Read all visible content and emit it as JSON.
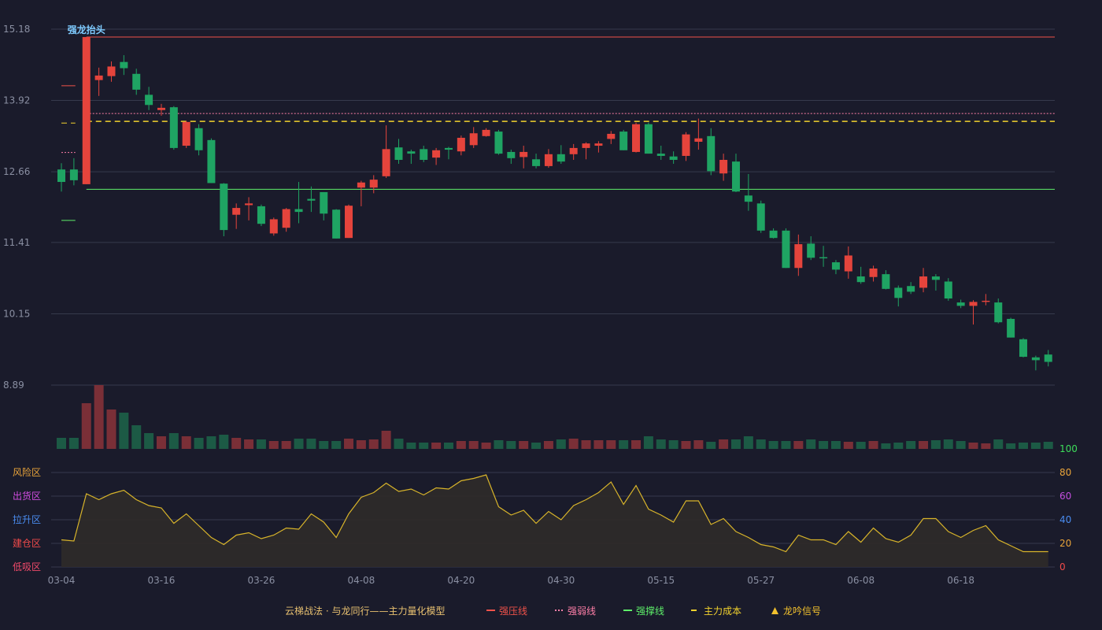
{
  "chart_data": {
    "type": "candlestick",
    "categories": [
      "03-04",
      null,
      null,
      null,
      null,
      null,
      null,
      null,
      "03-16",
      null,
      null,
      null,
      null,
      null,
      null,
      null,
      "03-26",
      null,
      null,
      null,
      null,
      null,
      null,
      null,
      "04-08",
      null,
      null,
      null,
      null,
      null,
      null,
      null,
      "04-20",
      null,
      null,
      null,
      null,
      null,
      null,
      null,
      "04-30",
      null,
      null,
      null,
      null,
      null,
      null,
      null,
      "05-15",
      null,
      null,
      null,
      null,
      null,
      null,
      null,
      "05-27",
      null,
      null,
      null,
      null,
      null,
      null,
      null,
      "06-08",
      null,
      null,
      null,
      null,
      null,
      null,
      null,
      "06-18",
      null,
      null,
      null,
      null,
      null,
      null,
      null
    ],
    "open": [
      12.7,
      12.7,
      12.44,
      14.28,
      14.35,
      14.6,
      14.39,
      14.02,
      13.75,
      13.8,
      13.12,
      13.43,
      13.22,
      12.45,
      11.9,
      12.07,
      12.05,
      11.57,
      11.67,
      12.0,
      12.18,
      12.3,
      11.99,
      11.49,
      12.38,
      12.38,
      12.58,
      13.09,
      13.02,
      13.06,
      12.91,
      13.08,
      13.02,
      13.13,
      13.29,
      13.37,
      13.01,
      12.92,
      12.88,
      12.76,
      12.97,
      12.97,
      13.08,
      13.12,
      13.24,
      13.37,
      13.01,
      13.5,
      12.98,
      12.93,
      12.94,
      13.19,
      13.29,
      12.63,
      12.84,
      12.24,
      12.1,
      11.62,
      11.62,
      10.96,
      11.39,
      11.15,
      11.06,
      10.9,
      10.81,
      10.8,
      10.85,
      10.61,
      10.64,
      10.61,
      10.81,
      10.72,
      10.35,
      10.29,
      10.36,
      10.35,
      10.06,
      9.7,
      9.38,
      9.43
    ],
    "close": [
      12.48,
      12.51,
      15.04,
      14.36,
      14.52,
      14.49,
      14.11,
      13.84,
      13.79,
      13.08,
      13.54,
      13.04,
      12.46,
      11.63,
      12.02,
      12.1,
      11.74,
      11.82,
      12.0,
      11.95,
      12.15,
      11.92,
      11.48,
      12.06,
      12.47,
      12.52,
      13.06,
      12.87,
      12.98,
      12.87,
      13.04,
      13.05,
      13.26,
      13.34,
      13.4,
      12.98,
      12.9,
      13.01,
      12.76,
      12.97,
      12.84,
      13.08,
      13.16,
      13.16,
      13.33,
      13.04,
      13.5,
      12.98,
      12.94,
      12.87,
      13.32,
      13.25,
      12.67,
      12.87,
      12.31,
      12.13,
      11.62,
      11.49,
      10.96,
      11.38,
      11.14,
      11.13,
      10.93,
      11.18,
      10.71,
      10.95,
      10.59,
      10.43,
      10.54,
      10.81,
      10.75,
      10.42,
      10.29,
      10.36,
      10.38,
      10.0,
      9.73,
      9.39,
      9.33,
      9.3
    ],
    "low": [
      12.31,
      12.42,
      12.44,
      14.0,
      14.25,
      14.37,
      14.02,
      13.75,
      13.65,
      13.05,
      13.08,
      12.95,
      12.46,
      11.52,
      11.65,
      11.8,
      11.7,
      11.53,
      11.6,
      11.75,
      11.95,
      11.8,
      11.48,
      11.49,
      12.05,
      12.28,
      12.55,
      12.8,
      12.8,
      12.83,
      12.78,
      12.88,
      12.95,
      13.08,
      13.28,
      12.96,
      12.8,
      12.72,
      12.72,
      12.73,
      12.8,
      12.87,
      12.88,
      13.0,
      13.15,
      13.04,
      13.0,
      12.98,
      12.87,
      12.8,
      12.85,
      13.05,
      12.6,
      12.5,
      12.3,
      11.97,
      11.58,
      11.48,
      10.96,
      10.82,
      11.1,
      10.98,
      10.85,
      10.77,
      10.68,
      10.72,
      10.58,
      10.28,
      10.5,
      10.53,
      10.56,
      10.38,
      10.25,
      9.96,
      10.3,
      9.98,
      9.73,
      9.38,
      9.15,
      9.22
    ],
    "high": [
      12.81,
      12.9,
      15.04,
      14.5,
      14.61,
      14.72,
      14.48,
      14.16,
      13.86,
      13.82,
      13.56,
      13.5,
      13.25,
      12.46,
      12.1,
      12.21,
      12.08,
      11.85,
      12.02,
      12.48,
      12.4,
      12.3,
      12.0,
      12.08,
      12.5,
      12.6,
      13.48,
      13.24,
      13.05,
      13.12,
      13.08,
      13.1,
      13.3,
      13.45,
      13.43,
      13.4,
      13.05,
      13.12,
      12.98,
      13.06,
      13.13,
      13.15,
      13.18,
      13.2,
      13.38,
      13.4,
      13.53,
      13.53,
      13.12,
      13.02,
      13.36,
      13.6,
      13.43,
      12.98,
      12.98,
      12.62,
      12.15,
      11.66,
      11.66,
      11.55,
      11.52,
      11.35,
      11.1,
      11.34,
      10.98,
      11.0,
      10.92,
      10.65,
      10.71,
      10.96,
      10.85,
      10.78,
      10.4,
      10.39,
      10.5,
      10.42,
      10.08,
      9.72,
      9.41,
      9.51
    ],
    "volume": [
      14,
      14,
      58,
      81,
      50,
      46,
      30,
      20,
      16,
      20,
      16,
      14,
      16,
      18,
      14,
      12,
      12,
      10,
      10,
      13,
      13,
      10,
      10,
      13,
      11,
      12,
      23,
      13,
      8,
      8,
      8,
      8,
      10,
      10,
      8,
      11,
      10,
      10,
      8,
      10,
      12,
      13,
      11,
      11,
      11,
      11,
      11,
      16,
      12,
      11,
      10,
      11,
      9,
      12,
      12,
      16,
      12,
      10,
      10,
      10,
      12,
      10,
      10,
      9,
      9,
      10,
      7,
      8,
      10,
      10,
      11,
      12,
      10,
      8,
      7,
      12,
      7,
      8,
      8,
      9
    ],
    "up_color": "#e5443c",
    "down_color": "#1fa463",
    "up_volume_color": "#7a2f37",
    "down_volume_color": "#1c5a45",
    "ylim": [
      8.89,
      15.18
    ],
    "yticks": [
      15.18,
      13.92,
      12.66,
      11.41,
      10.15,
      8.89
    ],
    "levels": [
      {
        "name": "强压线",
        "color": "#f0524a",
        "dash": "",
        "value": 15.04,
        "prior_value": 14.18
      },
      {
        "name": "强弱线",
        "color": "#ff7fa8",
        "dash": "2,2",
        "value": 13.69,
        "prior_value": 13.0
      },
      {
        "name": "强撑线",
        "color": "#5ef06a",
        "dash": "",
        "value": 12.35,
        "prior_value": 11.8
      },
      {
        "name": "主力成本",
        "color": "#f2d22e",
        "dash": "7,5",
        "value": 13.55,
        "prior_value": 13.52
      }
    ],
    "signal": {
      "label": "强龙抬头",
      "at": 2,
      "color": "#7ecbff"
    },
    "signal_legend": {
      "label": "龙吟信号",
      "color": "#f2c12e"
    },
    "legend_title": "云梯战法 · 与龙同行——主力量化模型",
    "indicator": {
      "values": [
        23,
        22,
        62,
        57,
        62,
        65,
        57,
        52,
        50,
        37,
        45,
        35,
        25,
        19,
        27,
        29,
        24,
        27,
        33,
        32,
        45,
        38,
        25,
        45,
        59,
        63,
        71,
        64,
        66,
        61,
        67,
        66,
        73,
        75,
        78,
        51,
        44,
        48,
        37,
        47,
        40,
        52,
        57,
        63,
        72,
        53,
        69,
        49,
        44,
        38,
        56,
        56,
        36,
        41,
        30,
        25,
        19,
        17,
        13,
        27,
        23,
        23,
        19,
        30,
        21,
        33,
        24,
        21,
        27,
        41,
        41,
        30,
        25,
        31,
        35,
        23,
        18,
        13,
        13,
        13
      ],
      "color": "#d8b42a",
      "ylim": [
        0,
        100
      ],
      "yticks": [
        100,
        80,
        60,
        40,
        20,
        0
      ],
      "ytick_colors": [
        "#3ddc5a",
        "#e8a33a",
        "#c44fe0",
        "#4a8cf0",
        "#e8a33a",
        "#f04a4a"
      ],
      "zones": [
        {
          "label": "风险区",
          "color": "#e8a33a"
        },
        {
          "label": "出货区",
          "color": "#d04ce0"
        },
        {
          "label": "拉升区",
          "color": "#4a8cf0"
        },
        {
          "label": "建仓区",
          "color": "#f04a4a"
        },
        {
          "label": "低吸区",
          "color": "#f04a6a"
        }
      ]
    }
  }
}
